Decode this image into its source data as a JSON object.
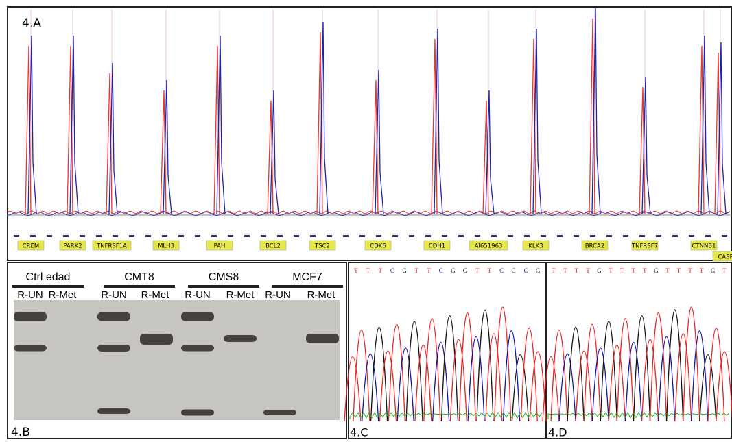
{
  "panel_a": {
    "label": "4.A",
    "genes": [
      "CREM",
      "PARK2",
      "TNFRSF1A",
      "MLH3",
      "PAH",
      "BCL2",
      "TSC2",
      "CDK6",
      "CDH1",
      "AI651963",
      "KLK3",
      "BRCA2",
      "TNFRSF7",
      "CTNNB1",
      "CASR"
    ]
  },
  "panel_b": {
    "label": "4.B",
    "groups": [
      "Ctrl edad",
      "CMT8",
      "CMS8",
      "MCF7"
    ],
    "lanes": [
      "R-UN",
      "R-Met",
      "R-UN",
      "R-Met",
      "R-UN",
      "R-Met",
      "R-UN",
      "R-Met"
    ]
  },
  "panel_c": {
    "label": "4.C",
    "sequence": [
      "T",
      "T",
      "T",
      "C",
      "G",
      "T",
      "T",
      "C",
      "G",
      "G",
      "T",
      "T",
      "C",
      "G",
      "C",
      "G"
    ]
  },
  "panel_d": {
    "label": "4.D",
    "sequence": [
      "T",
      "T",
      "T",
      "T",
      "G",
      "T",
      "T",
      "T",
      "T",
      "G",
      "T",
      "T",
      "T",
      "T",
      "G",
      "T"
    ]
  }
}
